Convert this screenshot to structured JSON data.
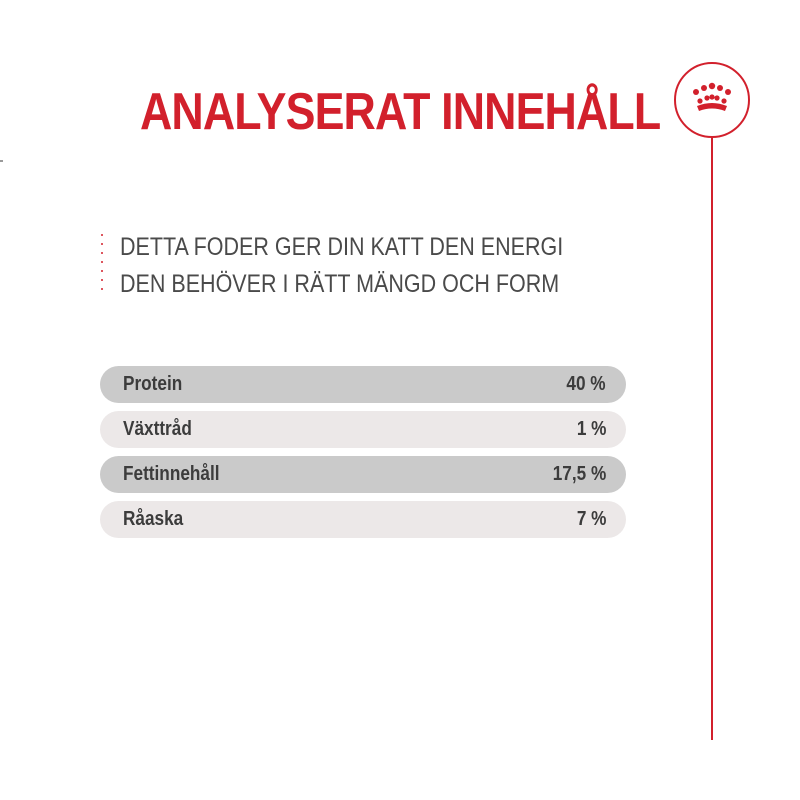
{
  "header": {
    "title": "ANALYSERAT INNEHÅLL",
    "logo_icon": "crown-icon",
    "accent_color": "#d2202c"
  },
  "intro": {
    "text": "DETTA FODER GER DIN KATT DEN ENERGI DEN BEHÖVER I RÄTT MÄNGD OCH FORM"
  },
  "analysis": {
    "rows": [
      {
        "label": "Protein",
        "value": "40 %"
      },
      {
        "label": "Växttråd",
        "value": "1 %"
      },
      {
        "label": "Fettinnehåll",
        "value": "17,5 %"
      },
      {
        "label": "Råaska",
        "value": "7 %"
      }
    ]
  }
}
